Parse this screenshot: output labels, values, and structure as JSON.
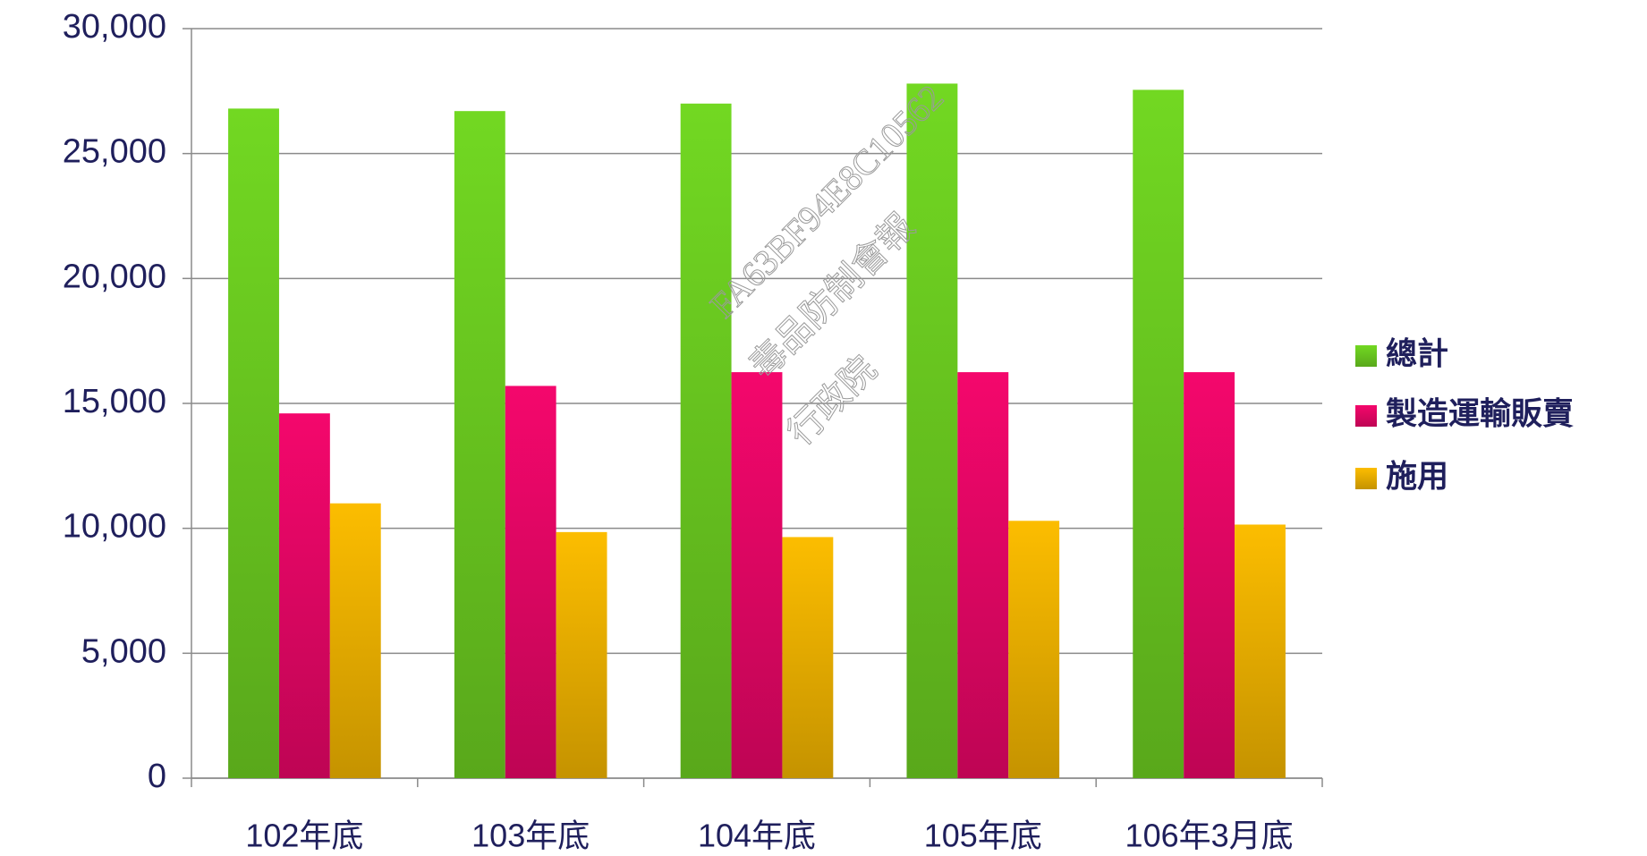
{
  "chart_data": {
    "type": "bar",
    "categories": [
      "102年底",
      "103年底",
      "104年底",
      "105年底",
      "106年3月底"
    ],
    "series": [
      {
        "name": "總計",
        "color": "#72d822",
        "values": [
          26800,
          26700,
          27000,
          27800,
          27550
        ]
      },
      {
        "name": "製造運輸販賣",
        "color": "#f4076c",
        "values": [
          14600,
          15700,
          16250,
          16250,
          16250
        ]
      },
      {
        "name": "施用",
        "color": "#fcbd00",
        "values": [
          11000,
          9850,
          9650,
          10300,
          10150
        ]
      }
    ],
    "ylim": [
      0,
      30000
    ],
    "yticks": [
      0,
      {
        "value": 5000,
        "label": "5,000"
      },
      {
        "value": 10000,
        "label": "10,000"
      },
      {
        "value": 15000,
        "label": "15,000"
      },
      {
        "value": 20000,
        "label": "20,000"
      },
      {
        "value": 25000,
        "label": "25,000"
      },
      {
        "value": 30000,
        "label": "30,000"
      }
    ],
    "grid": true,
    "legend": "right",
    "watermark": [
      "FA63BF94E8C10562",
      "毒品防制會報",
      "行政院"
    ]
  }
}
